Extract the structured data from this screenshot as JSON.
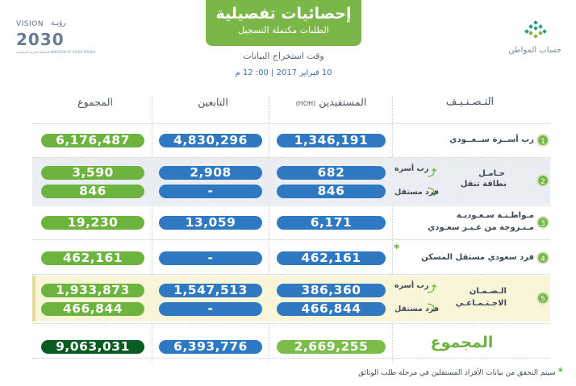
{
  "header": {
    "title": "إحصائيات تفصيلية",
    "subtitle": "الطلبات مكتملة التسجيل",
    "extract_label": "وقت استخراج البيانات",
    "extract_time": "10 فبراير 2017 | 00: 12 م"
  },
  "vision": {
    "word": "VISION",
    "arabic": "رؤيـة",
    "year": "2030",
    "caption": "المملكة العربية السعودية KINGDOM OF SAUDI ARABIA"
  },
  "brand": {
    "name": "حساب المواطن"
  },
  "columns": {
    "total": "المجموع",
    "dependents": "التابعين",
    "beneficiaries": "المستفيدين",
    "hoh": "(HOH)",
    "classification": "التـصـنـيـف"
  },
  "rows": [
    {
      "index": "1",
      "label": "رب أســرة ســعــودي",
      "total": "6,176,487",
      "dependents": "4,830,296",
      "beneficiaries": "1,346,191"
    },
    {
      "index": "2",
      "label_line1": "حـامـل",
      "label_line2": "بطاقة تنقل",
      "sub1": "رب أسرة",
      "sub2": "فرد مستقل",
      "total": "3,590",
      "dependents": "2,908",
      "beneficiaries": "682",
      "total2": "846",
      "dependents2": "-",
      "beneficiaries2": "846"
    },
    {
      "index": "3",
      "label_line1": "مـواطـنـة سـعـوديـة",
      "label_line2": "مـتـزوجة من غـيـر سعـودي",
      "total": "19,230",
      "dependents": "13,059",
      "beneficiaries": "6,171"
    },
    {
      "index": "4",
      "label": "فرد سعودي مستقل المسكن",
      "star": "*",
      "total": "462,161",
      "dependents": "-",
      "beneficiaries": "462,161"
    },
    {
      "index": "5",
      "label_line1": "الـضـمـان",
      "label_line2": "الاجـتـمـاعـي",
      "sub1": "رب أسرة",
      "sub2": "فرد مستقل",
      "total": "1,933,873",
      "dependents": "1,547,513",
      "beneficiaries": "386,360",
      "total2": "466,844",
      "dependents2": "-",
      "beneficiaries2": "466,844"
    }
  ],
  "grand_total": {
    "label": "المجموع",
    "total": "9,063,031",
    "dependents": "6,393,776",
    "beneficiaries": "2,669,255"
  },
  "footnote": {
    "star": "*",
    "text": "سيتم التحقق من بيانات الأفراد المستقلين في مرحلة طلب الوثائق"
  },
  "colors": {
    "green": "#6cb33f",
    "blue": "#2f78c2",
    "dark_green": "#0b5b24",
    "banner_green": "#7ab648"
  }
}
